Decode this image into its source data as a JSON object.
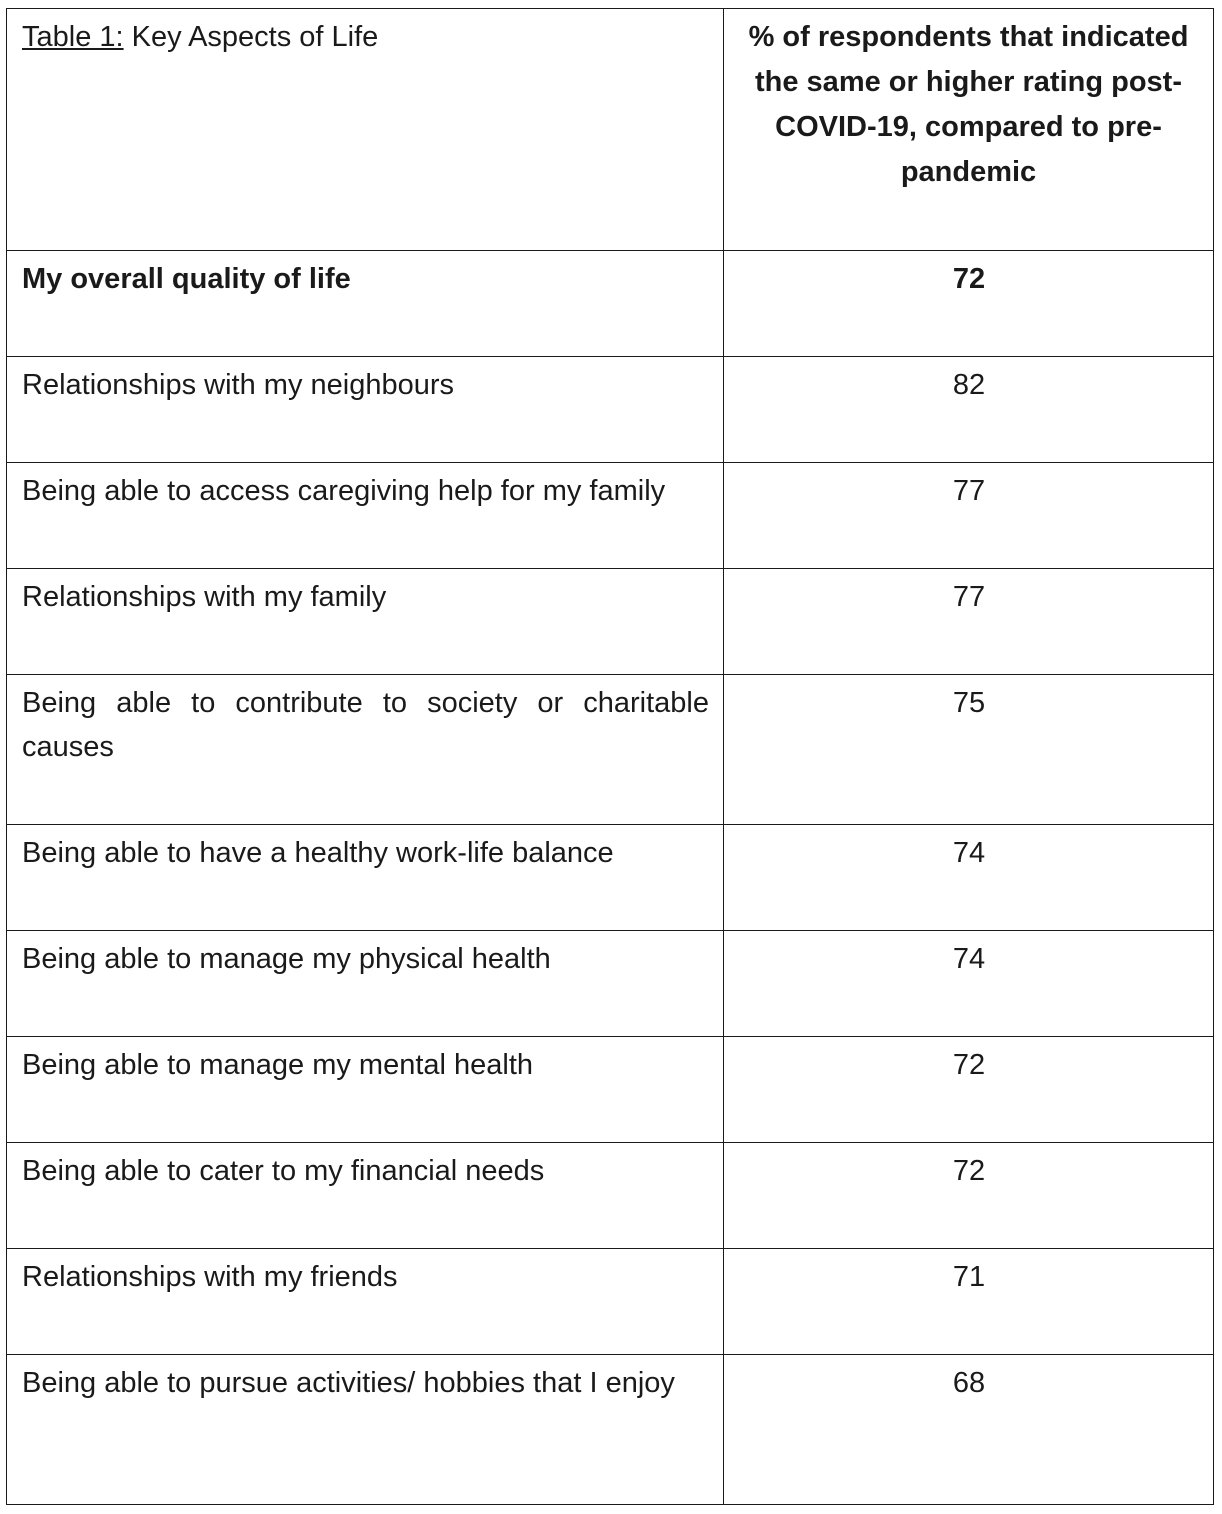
{
  "table": {
    "caption_prefix": "Table 1:",
    "caption_title": " Key Aspects of Life",
    "value_header": "% of respondents that indicated the same or higher rating post-COVID-19, compared to pre-pandemic",
    "rows": [
      {
        "label": "My overall quality of life",
        "value": "72"
      },
      {
        "label": "Relationships with my neighbours",
        "value": "82"
      },
      {
        "label": "Being able to access caregiving help for my family",
        "value": "77"
      },
      {
        "label": "Relationships with my family",
        "value": "77"
      },
      {
        "label": "Being able to contribute to society or charitable causes",
        "value": "75"
      },
      {
        "label": "Being able to have a healthy work-life balance",
        "value": "74"
      },
      {
        "label": "Being able to manage my physical health",
        "value": "74"
      },
      {
        "label": "Being able to manage my mental health",
        "value": "72"
      },
      {
        "label": "Being able to cater to my financial needs",
        "value": "72"
      },
      {
        "label": "Relationships with my friends",
        "value": "71"
      },
      {
        "label": "Being able to pursue activities/ hobbies that I enjoy",
        "value": "68"
      }
    ]
  }
}
